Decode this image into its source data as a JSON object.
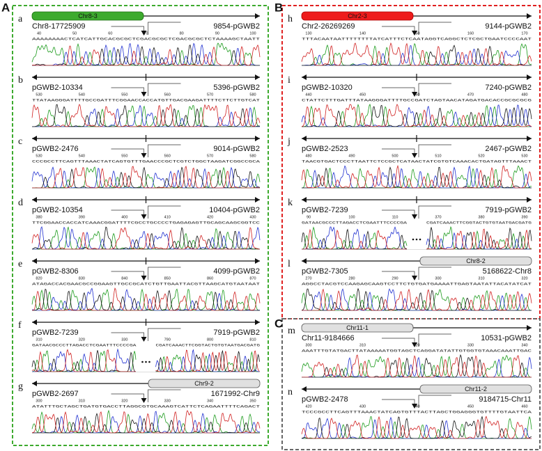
{
  "groups": [
    {
      "label": "A",
      "panels": [
        {
          "letter": "a",
          "bar": "Chr8-3",
          "left_label": "Chr8-17725909",
          "right_label": "9854-pGWB2",
          "ticks": [
            40,
            50,
            60,
            70,
            80,
            90,
            100
          ],
          "sequence": [
            "AAAAAAAACTCATCATTGCACGCGCTCGACGCGCTCGACGCGCTCTAAAAGCTAATT"
          ]
        },
        {
          "letter": "b",
          "left_label": "pGWB2-10334",
          "right_label": "5396-pGWB2",
          "ticks": [
            530,
            540,
            550,
            560,
            570,
            580
          ],
          "sequence": [
            "TTATAAGGGATTTTGCCGATTTCGGAACCACCATGTTGACGAAGATTTTCTTCTTGTCAT"
          ]
        },
        {
          "letter": "c",
          "left_label": "pGWB2-2476",
          "right_label": "9014-pGWB2",
          "ticks": [
            530,
            540,
            550,
            560,
            570,
            580
          ],
          "sequence": [
            "CCCGCCTTCAGTTTAAACTATCAGTGTTTGAACCCGCTCGTCTGGCTAAGATCGGCCGCA"
          ]
        },
        {
          "letter": "d",
          "left_label": "pGWB2-10354",
          "right_label": "10404-pGWB2",
          "ticks": [
            380,
            390,
            400,
            410,
            420,
            430
          ],
          "sequence": [
            "TTCGGAACCACCATCAAACGGATTTTCGCCTGCCCCTGAGAGAGTTGCAGCAAGCGGTCC"
          ]
        },
        {
          "letter": "e",
          "left_label": "pGWB2-8306",
          "right_label": "4099-pGWB2",
          "ticks": [
            820,
            830,
            840,
            850,
            860,
            870
          ],
          "sequence": [
            "ATAGACCACGAACGCCGGAAGTTGCCGCATCTGTTGAATTACGTTAAGCATGTAATAAT"
          ]
        },
        {
          "letter": "f",
          "left_label": "pGWB2-7239",
          "right_label": "7919-pGWB2",
          "ticks": [
            310,
            320,
            330,
            790,
            800,
            810
          ],
          "sequence": [
            "GATAACGCCCTTAGACCTCGAATTTCCCCGA",
            "CGATCAAACTTCGGTACTGTGTAATGACGATG"
          ]
        },
        {
          "letter": "g",
          "bar": "Chr9-2",
          "left_label": "pGWB2-2697",
          "right_label": "1671992-Chr9",
          "ticks": [
            300,
            310,
            320,
            330,
            340,
            350
          ],
          "sequence": [
            "ATATTTGCTAGCTGATGTGACCTTAGGCGTGCAAAGTCATTCTCAGAATTTTCAGACT"
          ]
        }
      ]
    },
    {
      "label": "B",
      "panels": [
        {
          "letter": "h",
          "bar": "Chr2-3",
          "left_label": "Chr2-26269269",
          "right_label": "9144-pGWB2",
          "ticks": [
            130,
            140,
            150,
            160,
            170
          ],
          "sequence": [
            "TTTACAATAATTTTTTTTATCATTTCTCAATAGGTCAGGCTCTCGCTGAATCCCCAAT"
          ]
        },
        {
          "letter": "i",
          "left_label": "pGWB2-10320",
          "right_label": "7240-pGWB2",
          "ticks": [
            440,
            450,
            460,
            470,
            480
          ],
          "sequence": [
            "CTATTCTTTGATTTATAAGGGATTTTGCCGATCTAGTAACATAGATGACACCGCGCGCG"
          ]
        },
        {
          "letter": "j",
          "left_label": "pGWB2-2523",
          "right_label": "2467-pGWB2",
          "ticks": [
            480,
            490,
            500,
            510,
            520,
            530
          ],
          "sequence": [
            "TAACGTGACTCCCTTAATTCTCCGCTCATAACTATCGTGTCAAACACTGATAGTTTAAACT"
          ]
        },
        {
          "letter": "k",
          "left_label": "pGWB2-7239",
          "right_label": "7919-pGWB2",
          "ticks": [
            90,
            100,
            110,
            370,
            380,
            390
          ],
          "sequence": [
            "GATAACGCCCTTAGACCTCGAATTTCCCCGA",
            "CGATCAAACTTCGGTACTGTGTAATGACGATG"
          ]
        },
        {
          "letter": "l",
          "bar": "Chr8-2",
          "left_label": "pGWB2-7305",
          "right_label": "5168622-Chr8",
          "ticks": [
            270,
            280,
            290,
            300,
            310,
            320
          ],
          "sequence": [
            "AGGCCTACGTCCAAGAGCAAGTCCTTCTGTGATGAAAATTGAGTAATATTACATATCAT"
          ]
        }
      ]
    },
    {
      "label": "C",
      "panels": [
        {
          "letter": "m",
          "bar": "Chr11-1",
          "left_label": "Chr11-9184666",
          "right_label": "10531-pGWB2",
          "ticks": [
            300,
            310,
            320,
            330,
            340
          ],
          "sequence": [
            "AAATTTGTATGACTTATAAAAATGGTAGCTCAGGATATATTGTGGTGTAAACAAATTGAC"
          ]
        },
        {
          "letter": "n",
          "bar": "Chr11-2",
          "left_label": "pGWB2-2478",
          "right_label": "9184715-Chr11",
          "ticks": [
            420,
            430,
            440,
            450,
            460
          ],
          "sequence": [
            "TCCCGCCTTCAGTTTAAACTATCAGTGTTTACTTAGCTGGAGGGTGTTTTGTAATTCA"
          ]
        }
      ]
    }
  ]
}
